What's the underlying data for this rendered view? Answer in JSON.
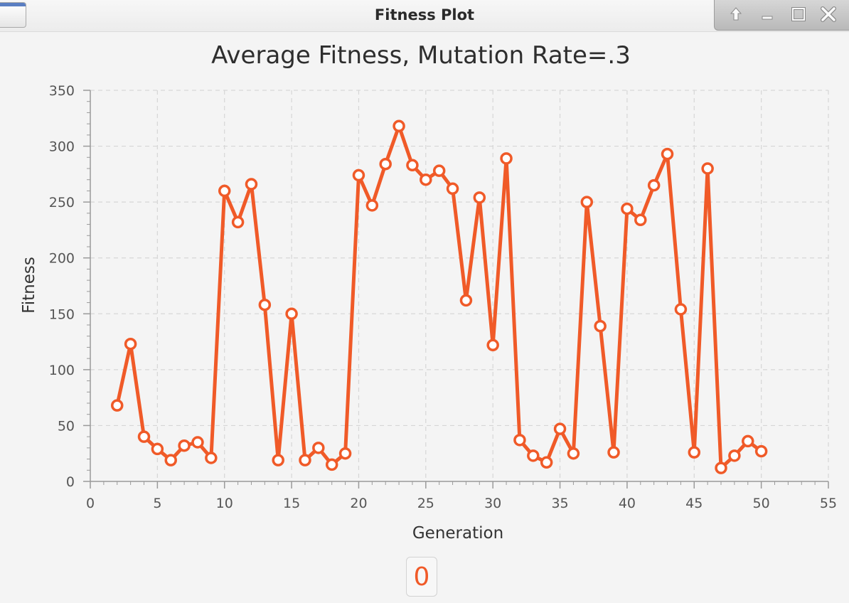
{
  "window": {
    "title": "Fitness Plot"
  },
  "icons": {
    "controls": [
      "arrow-up-icon",
      "minimize-icon",
      "maximize-icon",
      "close-icon"
    ]
  },
  "counter": {
    "value": "0"
  },
  "colors": {
    "series": "#f05a28",
    "grid": "#d6d6d6",
    "axis": "#555555"
  },
  "chart_data": {
    "type": "line",
    "title": "Average Fitness, Mutation Rate=.3",
    "xlabel": "Generation",
    "ylabel": "Fitness",
    "xlim": [
      0,
      55
    ],
    "ylim": [
      0,
      350
    ],
    "xticks": [
      0,
      5,
      10,
      15,
      20,
      25,
      30,
      35,
      40,
      45,
      50,
      55
    ],
    "yticks": [
      0,
      50,
      100,
      150,
      200,
      250,
      300,
      350
    ],
    "grid": true,
    "legend": "none",
    "x": [
      2,
      3,
      4,
      5,
      6,
      7,
      8,
      9,
      10,
      11,
      12,
      13,
      14,
      15,
      16,
      17,
      18,
      19,
      20,
      21,
      22,
      23,
      24,
      25,
      26,
      27,
      28,
      29,
      30,
      31,
      32,
      33,
      34,
      35,
      36,
      37,
      38,
      39,
      40,
      41,
      42,
      43,
      44,
      45,
      46,
      47,
      48,
      49,
      50
    ],
    "y": [
      68,
      123,
      40,
      29,
      19,
      32,
      35,
      21,
      260,
      232,
      266,
      158,
      19,
      150,
      19,
      30,
      15,
      25,
      274,
      247,
      284,
      318,
      283,
      270,
      278,
      262,
      162,
      254,
      122,
      289,
      37,
      23,
      17,
      47,
      25,
      250,
      139,
      26,
      244,
      234,
      265,
      293,
      154,
      26,
      280,
      12,
      23,
      36,
      27
    ]
  }
}
